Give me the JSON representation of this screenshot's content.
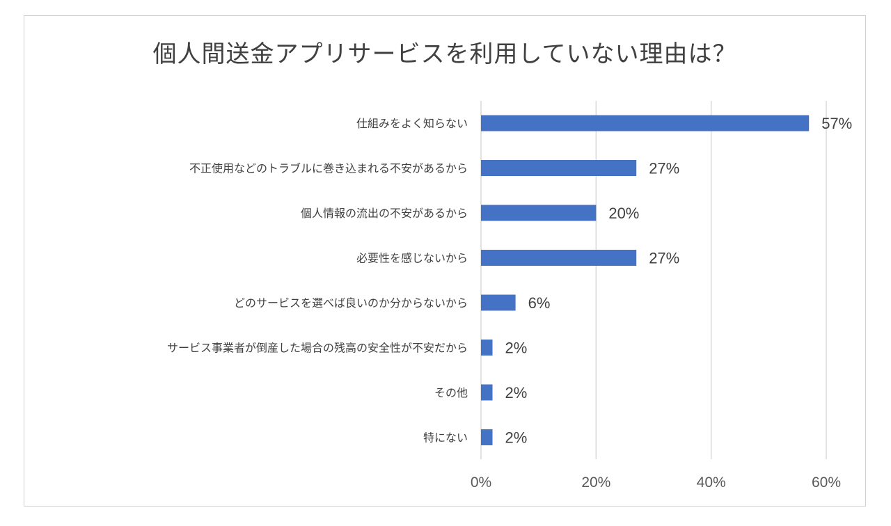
{
  "chart_data": {
    "type": "bar",
    "orientation": "horizontal",
    "title": "個人間送金アプリサービスを利用していない理由は？",
    "categories": [
      "仕組みをよく知らない",
      "不正使用などのトラブルに巻き込まれる不安があるから",
      "個人情報の流出の不安があるから",
      "必要性を感じないから",
      "どのサービスを選べば良いのか分からないから",
      "サービス事業者が倒産した場合の残高の安全性が不安だから",
      "その他",
      "特にない"
    ],
    "values": [
      57,
      27,
      20,
      27,
      6,
      2,
      2,
      2
    ],
    "data_labels": [
      "57%",
      "27%",
      "20%",
      "27%",
      "6%",
      "2%",
      "2%",
      "2%"
    ],
    "xlim": [
      0,
      60
    ],
    "x_ticks": [
      "0%",
      "20%",
      "40%",
      "60%"
    ],
    "xlabel": "",
    "ylabel": "",
    "grid": "vertical",
    "legend": "none",
    "bar_color": "#4472c4",
    "gridline_color": "#d9d9d9"
  }
}
